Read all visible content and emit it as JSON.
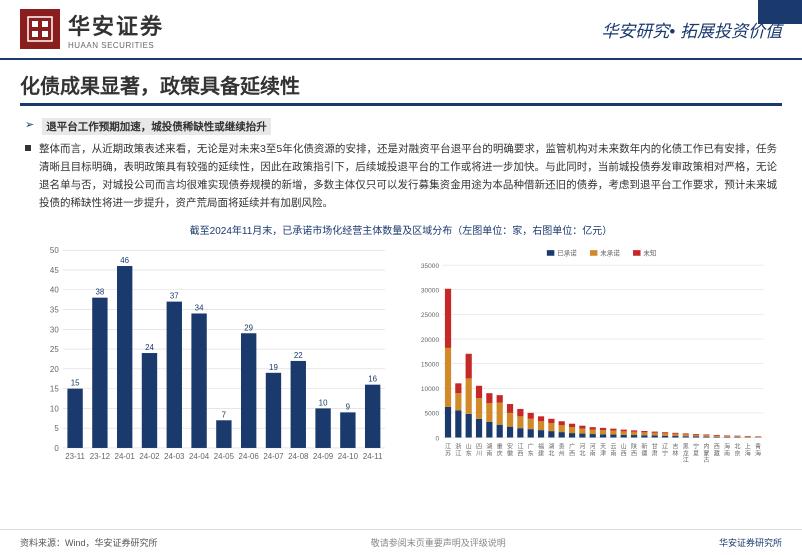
{
  "header": {
    "logo_cn": "华安证券",
    "logo_en": "HUAAN SECURITIES",
    "tagline": "华安研究• 拓展投资价值"
  },
  "title": "化债成果显著，政策具备延续性",
  "bullet1": "退平台工作预期加速，城投债稀缺性或继续抬升",
  "paragraph": "整体而言，从近期政策表述来看，无论是对未来3至5年化债资源的安排，还是对融资平台退平台的明确要求，监管机构对未来数年内的化债工作已有安排，任务清晰且目标明确，表明政策具有较强的延续性，因此在政策指引下，后续城投退平台的工作或将进一步加快。与此同时，当前城投债券发审政策相对严格，无论退名单与否，对城投公司而言均很难实现债券规模的新增，多数主体仅只可以发行募集资金用途为本品种借新还旧的债券，考虑到退平台工作要求，预计未来城投债的稀缺性将进一步提升，资产荒局面将延续并有加剧风险。",
  "chart_caption": "截至2024年11月末，已承诺市场化经营主体数量及区域分布（左图单位：家，右图单位：亿元）",
  "left_chart": {
    "type": "bar",
    "categories": [
      "23-11",
      "23-12",
      "24-01",
      "24-02",
      "24-03",
      "24-04",
      "24-05",
      "24-06",
      "24-07",
      "24-08",
      "24-09",
      "24-10",
      "24-11"
    ],
    "values": [
      15,
      38,
      46,
      24,
      37,
      34,
      7,
      29,
      19,
      22,
      10,
      9,
      16
    ],
    "bar_color": "#1a3a6e",
    "label_color": "#1a3a6e",
    "grid_color": "#d8d8d8",
    "axis_color": "#666666",
    "ylim": [
      0,
      50
    ],
    "ytick_step": 5,
    "label_fontsize": 8,
    "tick_fontsize": 8,
    "background": "#ffffff"
  },
  "right_chart": {
    "type": "stacked-bar",
    "categories": [
      "江苏",
      "浙江",
      "山东",
      "四川",
      "湖南",
      "重庆",
      "安徽",
      "江西",
      "广东",
      "福建",
      "湖北",
      "贵州",
      "广西",
      "河北",
      "河南",
      "天津",
      "云南",
      "山西",
      "陕西",
      "新疆",
      "甘肃",
      "辽宁",
      "吉林",
      "黑龙江",
      "宁夏",
      "内蒙古",
      "西藏",
      "海南",
      "北京",
      "上海",
      "青海"
    ],
    "series": [
      {
        "name": "已承诺",
        "color": "#1a3a6e",
        "values": [
          6200,
          5500,
          4800,
          3800,
          3200,
          2600,
          2200,
          1900,
          1700,
          1500,
          1300,
          1100,
          900,
          800,
          700,
          650,
          600,
          550,
          500,
          450,
          400,
          350,
          300,
          250,
          200,
          180,
          150,
          120,
          100,
          80,
          60
        ]
      },
      {
        "name": "未承诺",
        "color": "#d08a2a",
        "values": [
          12000,
          3500,
          7200,
          4200,
          3800,
          4500,
          2800,
          2400,
          2100,
          1800,
          1600,
          1400,
          1200,
          1000,
          900,
          850,
          800,
          700,
          650,
          600,
          550,
          500,
          450,
          400,
          350,
          300,
          250,
          200,
          180,
          150,
          120
        ]
      },
      {
        "name": "未知",
        "color": "#c62828",
        "values": [
          12000,
          2000,
          5000,
          2500,
          2000,
          1500,
          1800,
          1500,
          1200,
          1000,
          900,
          800,
          700,
          600,
          500,
          450,
          400,
          350,
          300,
          280,
          250,
          220,
          200,
          180,
          160,
          140,
          120,
          100,
          90,
          80,
          70
        ]
      }
    ],
    "grid_color": "#d8d8d8",
    "axis_color": "#666666",
    "ylim": [
      0,
      35000
    ],
    "ytick_step": 5000,
    "tick_fontsize": 6.5,
    "legend_fontsize": 7,
    "background": "#ffffff"
  },
  "footer": {
    "source": "资料来源：Wind，华安证券研究所",
    "disclaimer": "敬请参阅末页重要声明及评级说明",
    "right": "华安证券研究所"
  }
}
